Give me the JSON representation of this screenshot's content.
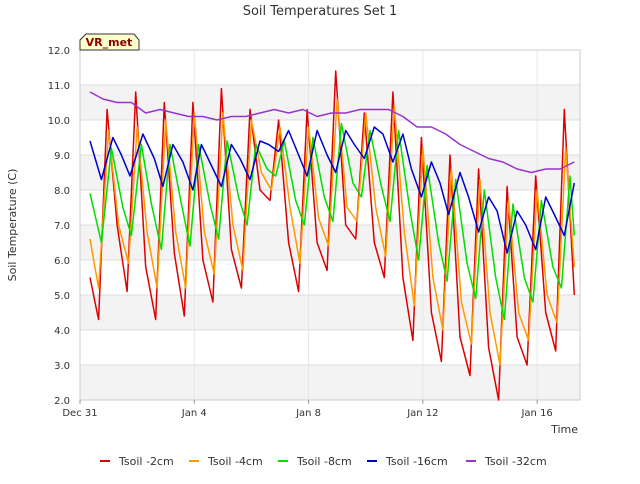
{
  "chart_data": {
    "type": "line",
    "title": "Soil Temperatures Set 1",
    "xlabel": "Time",
    "ylabel": "Soil Temperature (C)",
    "ylim": [
      2.0,
      12.0
    ],
    "xlim": [
      0,
      17.5
    ],
    "y_ticks": [
      "2.0",
      "3.0",
      "4.0",
      "5.0",
      "6.0",
      "7.0",
      "8.0",
      "9.0",
      "10.0",
      "11.0",
      "12.0"
    ],
    "x_ticks": [
      {
        "value": 0,
        "label": "Dec 31"
      },
      {
        "value": 4,
        "label": "Jan 4"
      },
      {
        "value": 8,
        "label": "Jan 8"
      },
      {
        "value": 12,
        "label": "Jan 12"
      },
      {
        "value": 16,
        "label": "Jan 16"
      }
    ],
    "grid": true,
    "legend_position": "bottom",
    "site_label": "VR_met",
    "series": [
      {
        "name": "Tsoil -2cm",
        "color": "#dd0000",
        "x": [
          0.35,
          0.6,
          0.65,
          0.95,
          1.3,
          1.65,
          1.95,
          2.3,
          2.65,
          2.95,
          3.3,
          3.65,
          3.95,
          4.3,
          4.65,
          4.95,
          5.3,
          5.65,
          5.95,
          6.3,
          6.65,
          6.95,
          7.3,
          7.65,
          7.95,
          8.3,
          8.65,
          8.95,
          9.3,
          9.65,
          9.95,
          10.3,
          10.65,
          10.95,
          11.3,
          11.65,
          11.95,
          12.3,
          12.65,
          12.95,
          13.3,
          13.65,
          13.95,
          14.3,
          14.65,
          14.95,
          15.3,
          15.65,
          15.95,
          16.3,
          16.65,
          16.95,
          17.3
        ],
        "y": [
          5.5,
          4.5,
          4.3,
          10.3,
          7.0,
          5.1,
          10.8,
          5.8,
          4.3,
          10.5,
          6.2,
          4.4,
          10.5,
          6.0,
          4.8,
          10.9,
          6.3,
          5.2,
          10.3,
          8.0,
          7.7,
          10.0,
          6.5,
          5.1,
          10.3,
          6.5,
          5.7,
          11.4,
          7.0,
          6.6,
          10.2,
          6.5,
          5.5,
          10.8,
          5.5,
          3.7,
          9.5,
          4.5,
          3.1,
          9.0,
          3.8,
          2.7,
          8.6,
          3.5,
          2.0,
          8.1,
          3.8,
          3.0,
          8.4,
          4.5,
          3.4,
          10.3,
          5.0
        ]
      },
      {
        "name": "Tsoil -4cm",
        "color": "#ff9900",
        "x": [
          0.35,
          0.65,
          1.0,
          1.35,
          1.7,
          2.0,
          2.35,
          2.7,
          3.0,
          3.35,
          3.7,
          4.0,
          4.35,
          4.7,
          5.0,
          5.35,
          5.7,
          6.0,
          6.35,
          6.7,
          7.0,
          7.35,
          7.7,
          8.0,
          8.35,
          8.7,
          9.0,
          9.35,
          9.7,
          10.0,
          10.35,
          10.7,
          11.0,
          11.35,
          11.7,
          12.0,
          12.35,
          12.7,
          13.0,
          13.35,
          13.7,
          14.0,
          14.35,
          14.7,
          15.0,
          15.35,
          15.7,
          16.0,
          16.35,
          16.7,
          17.0,
          17.3
        ],
        "y": [
          6.6,
          5.2,
          9.7,
          7.0,
          5.9,
          9.8,
          6.8,
          5.2,
          10.0,
          6.8,
          5.2,
          10.2,
          6.8,
          5.6,
          10.2,
          7.0,
          5.7,
          10.0,
          8.5,
          8.0,
          9.8,
          7.5,
          5.9,
          9.8,
          7.2,
          6.4,
          10.6,
          7.5,
          7.1,
          10.2,
          7.5,
          6.1,
          10.4,
          6.8,
          4.7,
          9.2,
          5.5,
          4.0,
          8.6,
          4.8,
          3.6,
          8.3,
          4.5,
          3.0,
          7.7,
          4.5,
          3.7,
          8.0,
          5.0,
          4.2,
          9.2,
          5.8
        ]
      },
      {
        "name": "Tsoil -8cm",
        "color": "#00dd00",
        "x": [
          0.35,
          0.75,
          1.1,
          1.5,
          1.8,
          2.15,
          2.5,
          2.85,
          3.15,
          3.55,
          3.85,
          4.15,
          4.55,
          4.85,
          5.15,
          5.55,
          5.85,
          6.15,
          6.55,
          6.85,
          7.15,
          7.55,
          7.85,
          8.15,
          8.55,
          8.85,
          9.15,
          9.55,
          9.85,
          10.15,
          10.55,
          10.85,
          11.15,
          11.55,
          11.85,
          12.15,
          12.55,
          12.85,
          13.15,
          13.55,
          13.85,
          14.15,
          14.55,
          14.85,
          15.15,
          15.55,
          15.85,
          16.15,
          16.55,
          16.85,
          17.15,
          17.3
        ],
        "y": [
          7.9,
          6.5,
          9.2,
          7.5,
          6.7,
          9.3,
          7.6,
          6.3,
          9.3,
          7.6,
          6.4,
          9.3,
          7.6,
          6.6,
          9.4,
          7.8,
          7.0,
          9.3,
          8.6,
          8.4,
          9.4,
          7.7,
          7.0,
          9.5,
          7.8,
          7.1,
          9.9,
          8.2,
          7.8,
          9.7,
          8.1,
          7.1,
          9.7,
          7.4,
          6.0,
          8.7,
          6.5,
          5.4,
          8.3,
          5.9,
          4.9,
          8.0,
          5.5,
          4.3,
          7.6,
          5.5,
          4.8,
          7.7,
          5.8,
          5.2,
          8.4,
          6.7
        ]
      },
      {
        "name": "Tsoil -16cm",
        "color": "#0000cc",
        "x": [
          0.35,
          0.75,
          1.15,
          1.45,
          1.75,
          2.2,
          2.6,
          2.9,
          3.25,
          3.6,
          3.95,
          4.25,
          4.6,
          4.95,
          5.3,
          5.6,
          5.95,
          6.3,
          6.6,
          6.95,
          7.3,
          7.65,
          7.95,
          8.3,
          8.65,
          8.95,
          9.3,
          9.6,
          9.95,
          10.3,
          10.6,
          10.95,
          11.3,
          11.6,
          11.95,
          12.3,
          12.6,
          12.9,
          13.3,
          13.6,
          13.95,
          14.3,
          14.6,
          14.95,
          15.3,
          15.6,
          15.95,
          16.3,
          16.6,
          16.95,
          17.3
        ],
        "y": [
          9.4,
          8.3,
          9.5,
          9.0,
          8.4,
          9.6,
          8.9,
          8.1,
          9.3,
          8.8,
          8.0,
          9.3,
          8.7,
          8.1,
          9.3,
          8.9,
          8.3,
          9.4,
          9.3,
          9.1,
          9.7,
          9.0,
          8.4,
          9.7,
          9.0,
          8.5,
          9.7,
          9.3,
          8.9,
          9.8,
          9.6,
          8.8,
          9.6,
          8.6,
          7.8,
          8.8,
          8.2,
          7.3,
          8.5,
          7.8,
          6.8,
          7.8,
          7.4,
          6.2,
          7.4,
          7.0,
          6.3,
          7.8,
          7.3,
          6.7,
          8.2
        ]
      },
      {
        "name": "Tsoil -32cm",
        "color": "#9933cc",
        "x": [
          0.35,
          0.8,
          1.3,
          1.8,
          2.3,
          2.8,
          3.3,
          3.8,
          4.3,
          4.8,
          5.3,
          5.8,
          6.3,
          6.8,
          7.3,
          7.8,
          8.3,
          8.8,
          9.3,
          9.8,
          10.3,
          10.8,
          11.3,
          11.8,
          12.3,
          12.8,
          13.3,
          13.8,
          14.3,
          14.8,
          15.3,
          15.8,
          16.3,
          16.8,
          17.3
        ],
        "y": [
          10.8,
          10.6,
          10.5,
          10.5,
          10.2,
          10.3,
          10.2,
          10.1,
          10.1,
          10.0,
          10.1,
          10.1,
          10.2,
          10.3,
          10.2,
          10.3,
          10.1,
          10.2,
          10.2,
          10.3,
          10.3,
          10.3,
          10.1,
          9.8,
          9.8,
          9.6,
          9.3,
          9.1,
          8.9,
          8.8,
          8.6,
          8.5,
          8.6,
          8.6,
          8.8
        ]
      }
    ]
  }
}
